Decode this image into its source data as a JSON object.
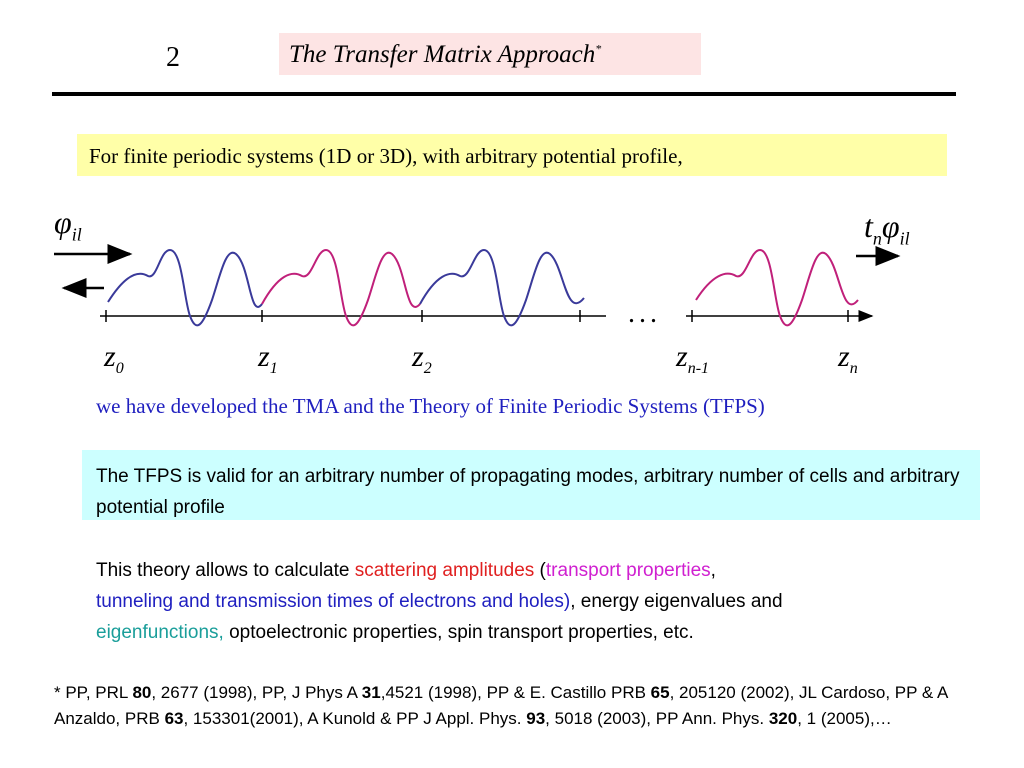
{
  "slide": {
    "number": "2",
    "title": "The Transfer Matrix Approach",
    "title_marker": "*"
  },
  "intro": "For finite periodic systems  (1D  or   3D), with arbitrary potential profile,",
  "figure": {
    "incident_symbol": "φ",
    "incident_sub": "il",
    "transmitted_coef": "t",
    "transmitted_coef_sub": "n",
    "transmitted_symbol": "φ",
    "transmitted_sub": "il",
    "ellipsis": "...",
    "z_labels": [
      {
        "base": "z",
        "sub": "0"
      },
      {
        "base": "z",
        "sub": "1"
      },
      {
        "base": "z",
        "sub": "2"
      },
      {
        "base": "z",
        "sub": "n-1"
      },
      {
        "base": "z",
        "sub": "n"
      }
    ],
    "colors": {
      "cell_a": "#3a3a9a",
      "cell_b": "#c0207a"
    }
  },
  "developed": "we have developed the TMA and the Theory of Finite Periodic Systems (TFPS)",
  "tfps_box": "The TFPS is valid for an arbitrary number of propagating modes, arbitrary number of cells and arbitrary potential profile",
  "theory": {
    "p1": "This theory allows to calculate ",
    "p2": "scattering amplitudes",
    "p3": " (",
    "p4": "transport properties",
    "p5": ",",
    "p6": "tunneling and transmission times of electrons and holes)",
    "p7": ", energy eigenvalues and",
    "p8": "eigenfunctions,",
    "p9": " optoelectronic properties, spin transport properties, etc."
  },
  "refs": {
    "r1": "* PP, PRL ",
    "b1": "80",
    "r2": ", 2677 (1998), PP, J Phys A ",
    "b2": "31",
    "r3": ",4521 (1998), PP & E. Castillo PRB ",
    "b3": "65",
    "r4": ", 205120 (2002), JL Cardoso, PP & A Anzaldo, PRB ",
    "b4": "63",
    "r5": ", 153301(2001), A Kunold & PP J Appl. Phys. ",
    "b5": "93",
    "r6": ", 5018 (2003), PP Ann. Phys. ",
    "b6": "320",
    "r7": ", 1 (2005),…"
  },
  "theme": {
    "title_bg": "#fde4e4",
    "intro_bg": "#ffffa8",
    "tfps_bg": "#ccffff",
    "developed_color": "#1f1fbf"
  }
}
